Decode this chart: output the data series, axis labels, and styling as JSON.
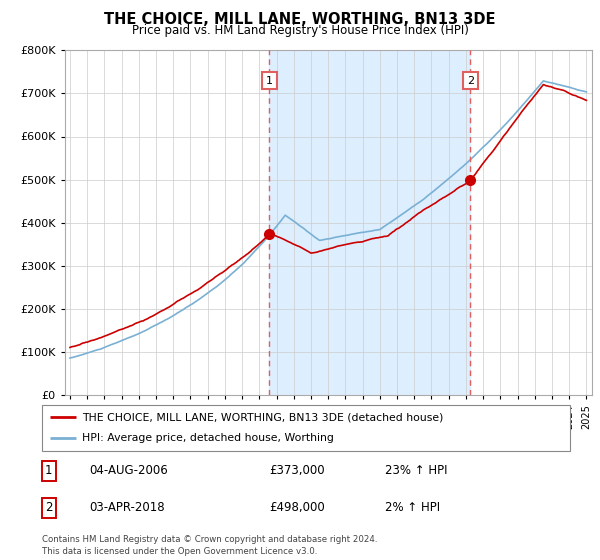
{
  "title": "THE CHOICE, MILL LANE, WORTHING, BN13 3DE",
  "subtitle": "Price paid vs. HM Land Registry's House Price Index (HPI)",
  "ylim": [
    0,
    800000
  ],
  "xlim_start": 1994.7,
  "xlim_end": 2025.3,
  "sale1_x": 2006.58,
  "sale1_y": 373000,
  "sale2_x": 2018.25,
  "sale2_y": 498000,
  "sale_color": "#cc0000",
  "hpi_color": "#7ab0d4",
  "vline_color": "#e06060",
  "fill_color": "#ddeeff",
  "legend_entry1": "THE CHOICE, MILL LANE, WORTHING, BN13 3DE (detached house)",
  "legend_entry2": "HPI: Average price, detached house, Worthing",
  "table_row1": [
    "1",
    "04-AUG-2006",
    "£373,000",
    "23% ↑ HPI"
  ],
  "table_row2": [
    "2",
    "03-APR-2018",
    "£498,000",
    "2% ↑ HPI"
  ],
  "footer": "Contains HM Land Registry data © Crown copyright and database right 2024.\nThis data is licensed under the Open Government Licence v3.0.",
  "background_color": "#ffffff",
  "grid_color": "#cccccc"
}
